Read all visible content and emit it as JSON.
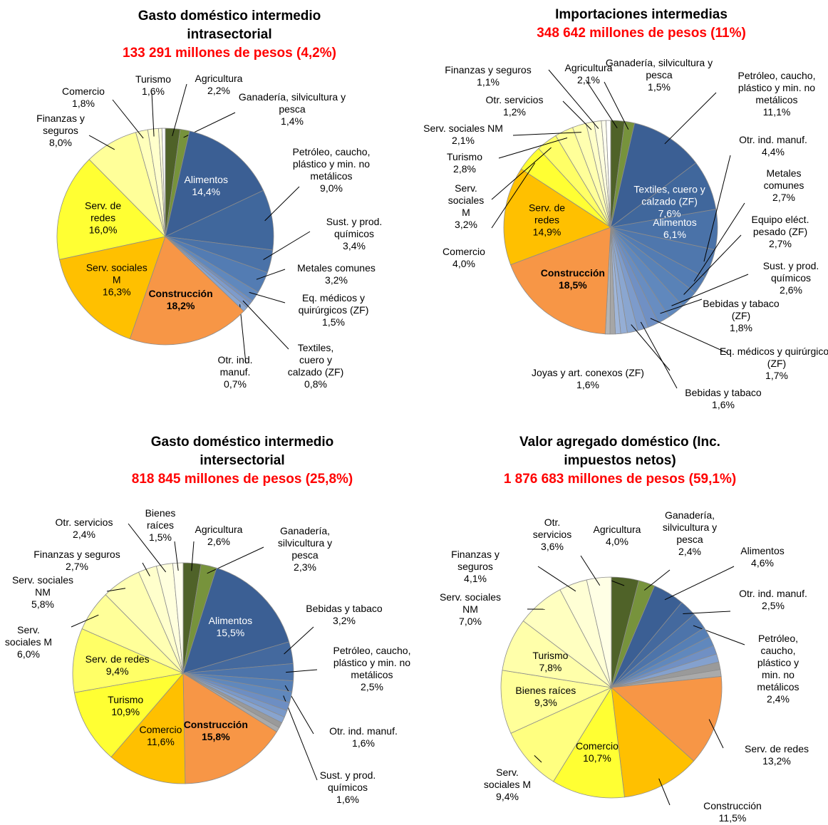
{
  "chart_data": [
    {
      "type": "pie",
      "title": "Gasto doméstico intermedio intrasectorial",
      "subtitle": "133 291 millones de pesos (4,2%)",
      "categories": [
        "Agricultura",
        "Ganadería, silvicultura y pesca",
        "Alimentos",
        "Petróleo, caucho, plástico y min. no metálicos",
        "Sust. y prod. químicos",
        "Metales comunes",
        "Eq. médicos y quirúrgicos (ZF)",
        null,
        "Textiles, cuero y calzado (ZF)",
        "Otr. ind. manuf.",
        "Construcción",
        "Serv. sociales M",
        "Serv. de redes",
        "Finanzas y seguros",
        "Comercio",
        "Turismo",
        null,
        null
      ],
      "values": [
        2.2,
        1.4,
        14.4,
        9.0,
        3.4,
        3.2,
        1.5,
        0.5,
        0.8,
        0.7,
        18.2,
        16.3,
        16.0,
        8.0,
        1.8,
        1.6,
        0.5,
        0.5
      ],
      "value_labels": [
        "2,2%",
        "1,4%",
        "14,4%",
        "9,0%",
        "3,4%",
        "3,2%",
        "1,5%",
        null,
        "0,8%",
        "0,7%",
        "18,2%",
        "16,3%",
        "16,0%",
        "8,0%",
        "1,8%",
        "1,6%",
        null,
        null
      ],
      "colors": [
        "#4f6228",
        "#77933c",
        "#3b5f94",
        "#40679c",
        "#4a72a8",
        "#537cb3",
        "#6088bd",
        "#7090c4",
        "#7d9bcb",
        "#8aa6d0",
        "#f79646",
        "#ffc000",
        "#ffff33",
        "#ffff99",
        "#ffffbb",
        "#ffffcc",
        "#ffffdd",
        "#ffffff"
      ]
    },
    {
      "type": "pie",
      "title": "Importaciones intermedias",
      "subtitle": "348 642 millones de pesos (11%)",
      "categories": [
        "Agricultura",
        "Ganadería, silvicultura y pesca",
        "Petróleo, caucho, plástico y min. no metálicos",
        "Textiles, cuero y calzado (ZF)",
        "Alimentos",
        "Otr. ind. manuf.",
        "Metales comunes",
        "Equipo eléct. pesado (ZF)",
        "Sust. y prod. químicos",
        "Bebidas y tabaco (ZF)",
        "Eq. médicos y quirúrgicos (ZF)",
        "Bebidas y tabaco",
        "Joyas y art. conexos (ZF)",
        null,
        null,
        null,
        null,
        "Construcción",
        "Serv. de redes",
        "Comercio",
        "Serv. sociales M",
        "Turismo",
        "Serv. sociales NM",
        "Otr. servicios",
        "Finanzas y seguros",
        null,
        null
      ],
      "values": [
        2.1,
        1.5,
        11.1,
        7.6,
        6.1,
        4.4,
        2.7,
        2.7,
        2.6,
        1.8,
        1.7,
        1.6,
        1.6,
        1.0,
        0.8,
        0.8,
        0.7,
        18.5,
        14.9,
        4.0,
        3.2,
        2.8,
        2.1,
        1.2,
        1.1,
        0.7,
        0.7
      ],
      "value_labels": [
        "2,1%",
        "1,5%",
        "11,1%",
        "7,6%",
        "6,1%",
        "4,4%",
        "2,7%",
        "2,7%",
        "2,6%",
        "1,8%",
        "1,7%",
        "1,6%",
        "1,6%",
        null,
        null,
        null,
        null,
        "18,5%",
        "14,9%",
        "4,0%",
        "3,2%",
        "2,8%",
        "2,1%",
        "1,2%",
        "1,1%",
        null,
        null
      ],
      "colors": [
        "#4f6228",
        "#77933c",
        "#3b5f94",
        "#40679c",
        "#4a72a8",
        "#4f77ad",
        "#537cb3",
        "#5982b7",
        "#6088bd",
        "#688dc1",
        "#7090c4",
        "#7d9bcb",
        "#8aa6d0",
        "#95aed5",
        "#a0b6d9",
        "#a6a6a6",
        "#b4b4b4",
        "#f79646",
        "#ffc000",
        "#ffff33",
        "#ffff66",
        "#ffff99",
        "#ffffb0",
        "#ffffc8",
        "#ffffdd",
        "#ffffee",
        "#ffffff"
      ]
    },
    {
      "type": "pie",
      "title": "Gasto doméstico intermedio intersectorial",
      "subtitle": "818 845 millones de pesos (25,8%)",
      "categories": [
        "Agricultura",
        "Ganadería, silvicultura y pesca",
        "Alimentos",
        "Bebidas y tabaco",
        "Petróleo, caucho, plástico y min. no metálicos",
        "Otr. ind. manuf.",
        "Sust. y prod. químicos",
        null,
        null,
        null,
        null,
        null,
        "Construcción",
        "Comercio",
        "Turismo",
        "Serv. de redes",
        "Serv. sociales M",
        "Serv. sociales NM",
        "Finanzas y seguros",
        "Otr. servicios",
        "Bienes raíces"
      ],
      "values": [
        2.6,
        2.3,
        15.5,
        3.2,
        2.5,
        1.6,
        1.6,
        1.2,
        1.0,
        0.9,
        0.8,
        0.7,
        15.8,
        11.6,
        10.9,
        9.4,
        6.0,
        5.8,
        2.7,
        2.4,
        1.5
      ],
      "value_labels": [
        "2,6%",
        "2,3%",
        "15,5%",
        "3,2%",
        "2,5%",
        "1,6%",
        "1,6%",
        null,
        null,
        null,
        null,
        null,
        "15,8%",
        "11,6%",
        "10,9%",
        "9,4%",
        "6,0%",
        "5,8%",
        "2,7%",
        "2,4%",
        "1,5%"
      ],
      "colors": [
        "#4f6228",
        "#77933c",
        "#3b5f94",
        "#44699e",
        "#4d74aa",
        "#567fb5",
        "#6088bd",
        "#6d8ec3",
        "#7a99c9",
        "#88a4cf",
        "#9a9a9a",
        "#aaaaaa",
        "#f79646",
        "#ffc000",
        "#ffff33",
        "#ffff66",
        "#ffff99",
        "#ffffb3",
        "#ffffcc",
        "#ffffdd",
        "#ffffee"
      ]
    },
    {
      "type": "pie",
      "title": "Valor agregado doméstico (Inc. impuestos netos)",
      "subtitle": "1 876 683 millones de pesos (59,1%)",
      "categories": [
        "Agricultura",
        "Ganadería, silvicultura y pesca",
        "Alimentos",
        "Otr. ind. manuf.",
        "Petróleo, caucho, plástico y min. no metálicos",
        null,
        null,
        null,
        null,
        null,
        null,
        "Serv. de redes",
        "Construcción",
        "Comercio",
        "Serv. sociales M",
        "Bienes raíces",
        "Turismo",
        "Serv. sociales NM",
        "Finanzas y seguros",
        "Otr. servicios"
      ],
      "values": [
        4.0,
        2.4,
        4.6,
        2.5,
        2.4,
        1.5,
        1.4,
        1.3,
        1.2,
        1.1,
        1.0,
        13.2,
        11.5,
        10.7,
        9.4,
        9.3,
        7.8,
        7.0,
        4.1,
        3.6
      ],
      "value_labels": [
        "4,0%",
        "2,4%",
        "4,6%",
        "2,5%",
        "2,4%",
        null,
        null,
        null,
        null,
        null,
        null,
        "13,2%",
        "11,5%",
        "10,7%",
        "9,4%",
        "9,3%",
        "7,8%",
        "7,0%",
        "4,1%",
        "3,6%"
      ],
      "colors": [
        "#4f6228",
        "#77933c",
        "#3b5f94",
        "#44699e",
        "#4d74aa",
        "#567fb5",
        "#6088bd",
        "#7090c4",
        "#84a1ce",
        "#9a9a9a",
        "#aaaaaa",
        "#f79646",
        "#ffc000",
        "#ffff33",
        "#ffff80",
        "#ffff99",
        "#ffffaa",
        "#ffffc0",
        "#ffffd5",
        "#ffffe5"
      ]
    }
  ]
}
